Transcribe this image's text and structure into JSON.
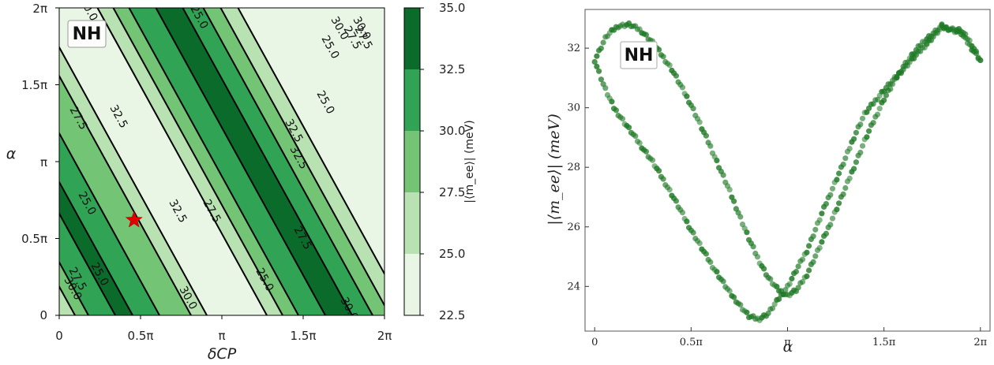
{
  "chart_data": [
    {
      "type": "contour",
      "badge": "NH",
      "xlabel": "δCP",
      "ylabel": "α",
      "xlim_pi": [
        0,
        2
      ],
      "ylim_pi": [
        0,
        2
      ],
      "x_ticks": [
        "0",
        "0.5π",
        "π",
        "1.5π",
        "2π"
      ],
      "y_ticks": [
        "0",
        "0.5π",
        "π",
        "1.5π",
        "2π"
      ],
      "colorbar": {
        "label": "|⟨m_ee⟩| (meV)",
        "ticks": [
          "22.5",
          "25.0",
          "27.5",
          "30.0",
          "32.5",
          "35.0"
        ],
        "levels": [
          22.5,
          25.0,
          27.5,
          30.0,
          32.5,
          35.0
        ],
        "colors": [
          "#e9f6e5",
          "#b9e2b2",
          "#74c476",
          "#31a354",
          "#0b6b2b"
        ]
      },
      "contour_line_labels": [
        "30.0",
        "30.0",
        "27.5",
        "25.0",
        "25.0",
        "27.5",
        "32.5",
        "25.0",
        "32.5",
        "27.5",
        "30.0",
        "32.5",
        "25.0",
        "27.5",
        "25.0",
        "32.5",
        "27.5",
        "30.0",
        "30.0",
        "25.0",
        "27.5",
        "30.0"
      ],
      "best_fit_point": {
        "delta_cp_pi": 0.46,
        "alpha_pi": 0.62,
        "marker": "red-star"
      }
    },
    {
      "type": "scatter",
      "badge": "NH",
      "xlabel": "α",
      "ylabel": "|⟨m_ee⟩| (meV)",
      "xlim_pi": [
        -0.05,
        2.05
      ],
      "ylim": [
        22.5,
        33.3
      ],
      "x_ticks": [
        "0",
        "0.5π",
        "π",
        "1.5π",
        "2π"
      ],
      "y_ticks": [
        "24",
        "26",
        "28",
        "30",
        "32"
      ],
      "color": "#1f7a26",
      "curve_a": {
        "alpha_pi": [
          0,
          0.06,
          0.12,
          0.18,
          0.24,
          0.3,
          0.4,
          0.5,
          0.6,
          0.7,
          0.75,
          0.8,
          0.85,
          0.9,
          0.95,
          1.0,
          1.05,
          1.1,
          1.2,
          1.3,
          1.4,
          1.5,
          1.6,
          1.7,
          1.8,
          1.9,
          2.0
        ],
        "m_ee": [
          31.6,
          32.4,
          32.75,
          32.8,
          32.6,
          32.2,
          31.3,
          30.1,
          28.7,
          27.2,
          26.4,
          25.6,
          24.9,
          24.3,
          23.9,
          23.7,
          23.9,
          24.4,
          25.8,
          27.3,
          28.9,
          30.3,
          31.4,
          32.2,
          32.75,
          32.5,
          31.6
        ]
      },
      "curve_b": {
        "alpha_pi": [
          0,
          0.05,
          0.1,
          0.2,
          0.3,
          0.4,
          0.5,
          0.6,
          0.7,
          0.8,
          0.85,
          0.9,
          1.0,
          1.1,
          1.2,
          1.3,
          1.35,
          1.4,
          1.5,
          1.6,
          1.7,
          1.8,
          1.9,
          1.95,
          2.0
        ],
        "m_ee": [
          31.6,
          30.7,
          30.0,
          29.1,
          28.2,
          27.1,
          25.9,
          24.8,
          23.8,
          23.0,
          22.9,
          23.1,
          24.0,
          25.2,
          26.8,
          28.3,
          29.1,
          29.8,
          30.6,
          31.3,
          32.0,
          32.7,
          32.6,
          32.2,
          31.6
        ]
      }
    }
  ]
}
